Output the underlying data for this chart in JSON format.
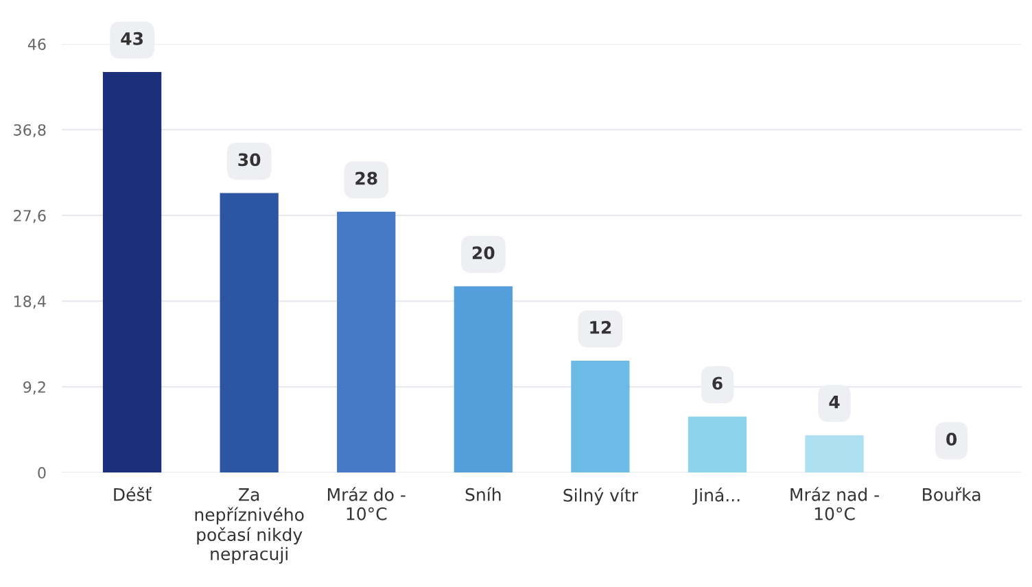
{
  "chart_data": {
    "type": "bar",
    "categories": [
      "Déšť",
      "Za\nnepříznivého\npočasí nikdy\nnepracuji",
      "Mráz do -\n10°C",
      "Sníh",
      "Silný vítr",
      "Jiná...",
      "Mráz nad -\n10°C",
      "Bouřka"
    ],
    "values": [
      43,
      30,
      28,
      20,
      12,
      6,
      4,
      0
    ],
    "colors": [
      "#1b2f7a",
      "#2c55a2",
      "#4579c6",
      "#559edc",
      "#6bbbe6",
      "#8dd3ee",
      "#aee0f1",
      "#c6ebf6"
    ],
    "ylim": [
      0,
      46
    ],
    "yticks": [
      0,
      {
        "value": 9.2,
        "label": "9,2"
      },
      {
        "value": 18.4,
        "label": "18,4"
      },
      {
        "value": 27.6,
        "label": "27,6"
      },
      {
        "value": 36.8,
        "label": "36,8"
      },
      46
    ],
    "grid": "y",
    "data_labels": true
  }
}
